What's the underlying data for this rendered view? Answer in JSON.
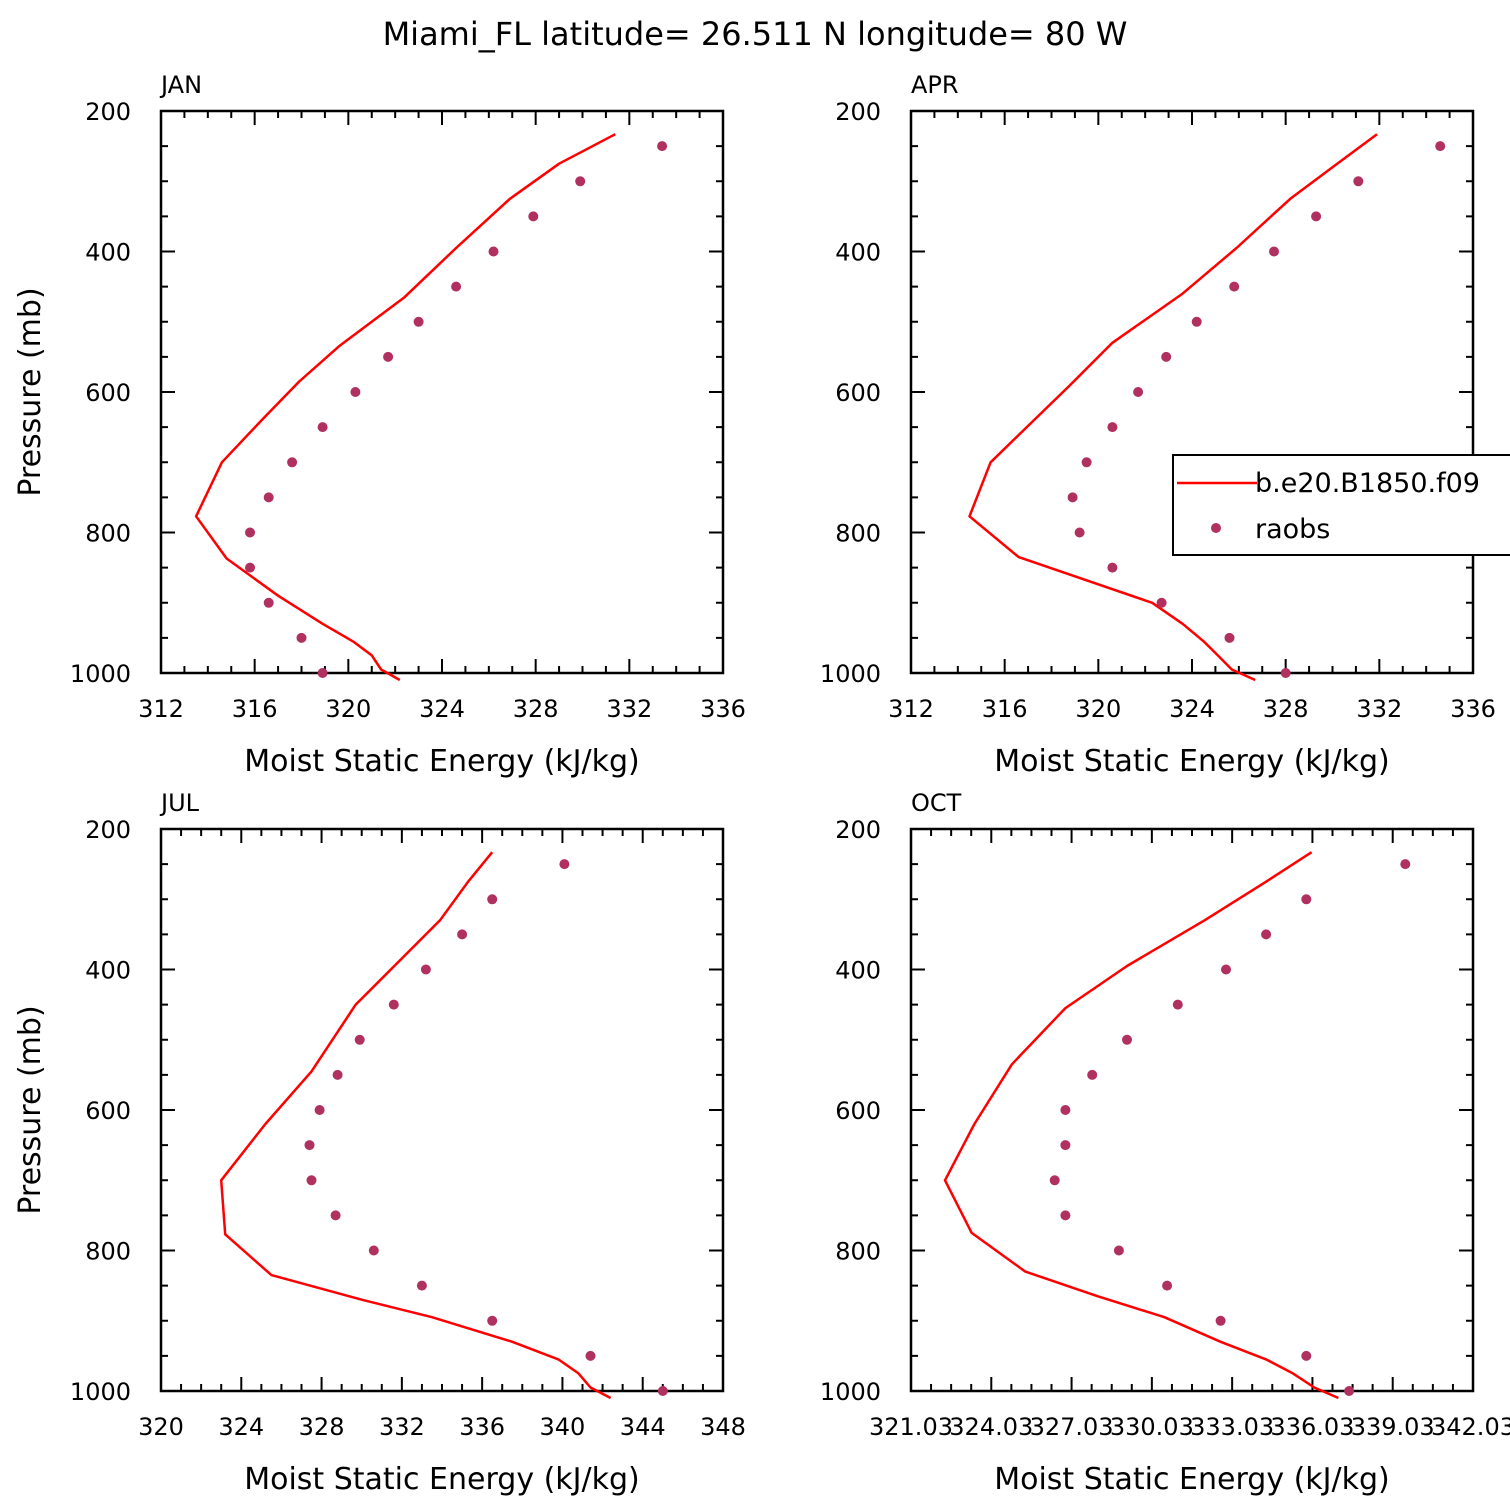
{
  "figure_title": "Miami_FL  latitude= 26.511 N longitude= 80 W",
  "legend": {
    "model": "b.e20.B1850.f09",
    "obs": "raobs"
  },
  "colors": {
    "model_line": "#ff0000",
    "obs_marker": "#b03060"
  },
  "chart_data": [
    {
      "type": "line",
      "panel": "JAN",
      "xlabel": "Moist Static Energy (kJ/kg)",
      "ylabel": "Pressure (mb)",
      "xlim": [
        312,
        336
      ],
      "ylim": [
        1000,
        200
      ],
      "xticks": [
        "312",
        "316",
        "320",
        "324",
        "328",
        "332",
        "336"
      ],
      "yticks": [
        "200",
        "400",
        "600",
        "800",
        "1000"
      ],
      "model": {
        "x": [
          322.2,
          321.4,
          321.0,
          320.2,
          318.9,
          317.0,
          314.8,
          313.5,
          314.6,
          316.3,
          317.9,
          319.6,
          322.4,
          324.6,
          326.9,
          329.0,
          331.4
        ],
        "y": [
          1010,
          995,
          975,
          955,
          930,
          890,
          837,
          777,
          700,
          640,
          585,
          535,
          465,
          395,
          325,
          275,
          233
        ]
      },
      "obs": {
        "x": [
          318.9,
          318.0,
          316.6,
          315.8,
          315.8,
          316.6,
          317.6,
          318.9,
          320.3,
          321.7,
          323.0,
          324.6,
          326.2,
          327.9,
          329.9,
          333.4
        ],
        "y": [
          1000,
          950,
          900,
          850,
          800,
          750,
          700,
          650,
          600,
          550,
          500,
          450,
          400,
          350,
          300,
          250
        ]
      }
    },
    {
      "type": "line",
      "panel": "APR",
      "xlabel": "Moist Static Energy (kJ/kg)",
      "ylabel": "",
      "xlim": [
        312,
        336
      ],
      "ylim": [
        1000,
        200
      ],
      "xticks": [
        "312",
        "316",
        "320",
        "324",
        "328",
        "332",
        "336"
      ],
      "yticks": [
        "200",
        "400",
        "600",
        "800",
        "1000"
      ],
      "model": {
        "x": [
          326.7,
          325.7,
          325.1,
          324.5,
          323.6,
          322.3,
          316.6,
          314.5,
          315.4,
          317.1,
          318.8,
          320.6,
          323.6,
          325.9,
          328.2,
          330.2,
          331.9
        ],
        "y": [
          1010,
          995,
          975,
          955,
          930,
          900,
          835,
          777,
          700,
          645,
          590,
          530,
          460,
          395,
          325,
          275,
          233
        ]
      },
      "obs": {
        "x": [
          328.0,
          325.6,
          322.7,
          320.6,
          319.2,
          318.9,
          319.5,
          320.6,
          321.7,
          322.9,
          324.2,
          325.8,
          327.5,
          329.3,
          331.1,
          334.6
        ],
        "y": [
          1000,
          950,
          900,
          850,
          800,
          750,
          700,
          650,
          600,
          550,
          500,
          450,
          400,
          350,
          300,
          250
        ]
      }
    },
    {
      "type": "line",
      "panel": "JUL",
      "xlabel": "Moist Static Energy (kJ/kg)",
      "ylabel": "Pressure (mb)",
      "xlim": [
        320,
        348
      ],
      "ylim": [
        1000,
        200
      ],
      "xticks": [
        "320",
        "324",
        "328",
        "332",
        "336",
        "340",
        "344",
        "348"
      ],
      "yticks": [
        "200",
        "400",
        "600",
        "800",
        "1000"
      ],
      "model": {
        "x": [
          342.4,
          341.4,
          340.8,
          339.8,
          337.5,
          333.5,
          330.0,
          325.5,
          323.2,
          323.0,
          325.2,
          327.5,
          329.7,
          331.8,
          333.9,
          335.3,
          336.5
        ],
        "y": [
          1010,
          995,
          975,
          955,
          930,
          895,
          870,
          835,
          777,
          700,
          620,
          545,
          450,
          390,
          330,
          275,
          233
        ]
      },
      "obs": {
        "x": [
          345.0,
          341.4,
          336.5,
          333.0,
          330.6,
          328.7,
          327.5,
          327.4,
          327.9,
          328.8,
          329.9,
          331.6,
          333.2,
          335.0,
          336.5,
          340.1
        ],
        "y": [
          1000,
          950,
          900,
          850,
          800,
          750,
          700,
          650,
          600,
          550,
          500,
          450,
          400,
          350,
          300,
          250
        ]
      }
    },
    {
      "type": "line",
      "panel": "OCT",
      "xlabel": "Moist Static Energy (kJ/kg)",
      "ylabel": "",
      "xlim": [
        321.03,
        342.03
      ],
      "ylim": [
        1000,
        200
      ],
      "xticks": [
        "321.03",
        "324.03",
        "327.03",
        "330.03",
        "333.03",
        "336.03",
        "339.03",
        "342.03"
      ],
      "yticks": [
        "200",
        "400",
        "600",
        "800",
        "1000"
      ],
      "model": {
        "x": [
          337.0,
          336.1,
          335.3,
          334.3,
          332.6,
          330.5,
          328.0,
          325.3,
          323.3,
          322.3,
          323.4,
          324.8,
          326.8,
          329.1,
          332.0,
          334.3,
          336.0
        ],
        "y": [
          1010,
          995,
          975,
          955,
          930,
          895,
          865,
          830,
          775,
          700,
          620,
          535,
          455,
          395,
          330,
          275,
          233
        ]
      },
      "obs": {
        "x": [
          337.4,
          335.8,
          332.6,
          330.6,
          328.8,
          326.8,
          326.4,
          326.8,
          326.8,
          327.8,
          329.1,
          331.0,
          332.8,
          334.3,
          335.8,
          339.5
        ],
        "y": [
          1000,
          950,
          900,
          850,
          800,
          750,
          700,
          650,
          600,
          550,
          500,
          450,
          400,
          350,
          300,
          250
        ]
      }
    }
  ]
}
